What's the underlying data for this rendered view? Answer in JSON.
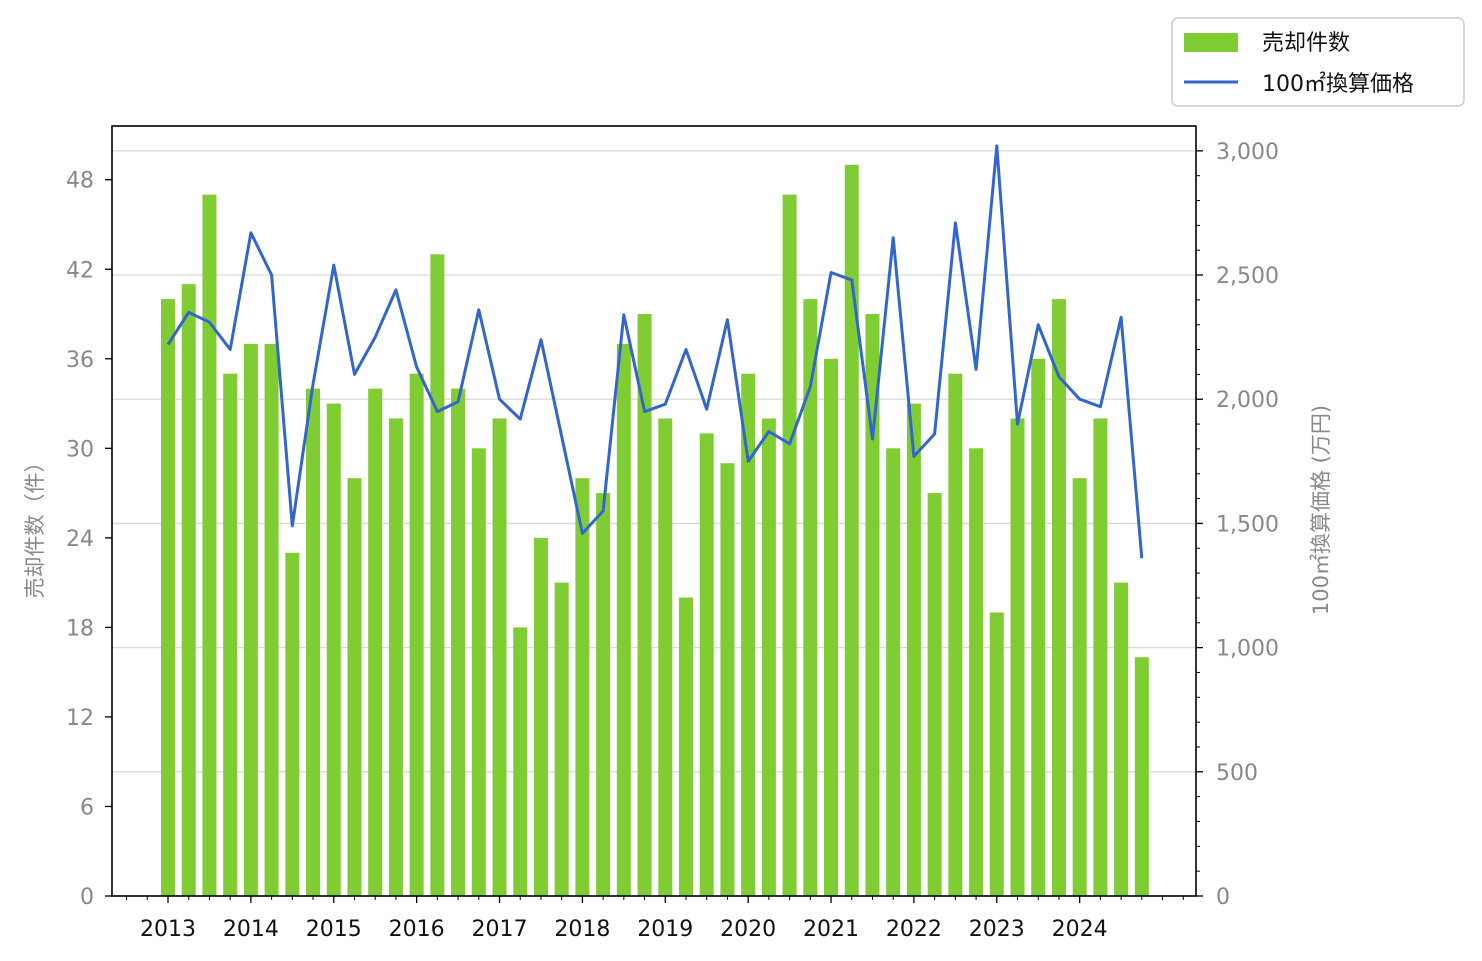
{
  "chart_data": {
    "type": "bar+line",
    "categories": [
      "2013 Q1",
      "2013 Q2",
      "2013 Q3",
      "2013 Q4",
      "2014 Q1",
      "2014 Q2",
      "2014 Q3",
      "2014 Q4",
      "2015 Q1",
      "2015 Q2",
      "2015 Q3",
      "2015 Q4",
      "2016 Q1",
      "2016 Q2",
      "2016 Q3",
      "2016 Q4",
      "2017 Q1",
      "2017 Q2",
      "2017 Q3",
      "2017 Q4",
      "2018 Q1",
      "2018 Q2",
      "2018 Q3",
      "2018 Q4",
      "2019 Q1",
      "2019 Q2",
      "2019 Q3",
      "2019 Q4",
      "2020 Q1",
      "2020 Q2",
      "2020 Q3",
      "2020 Q4",
      "2021 Q1",
      "2021 Q2",
      "2021 Q3",
      "2021 Q4",
      "2022 Q1",
      "2022 Q2",
      "2022 Q3",
      "2022 Q4",
      "2023 Q1",
      "2023 Q2",
      "2023 Q3",
      "2023 Q4",
      "2024 Q1",
      "2024 Q2",
      "2024 Q3",
      "2024 Q4"
    ],
    "series": [
      {
        "name": "売却件数",
        "type": "bar",
        "axis": "left",
        "color": "#7fcc33",
        "values": [
          40,
          41,
          47,
          35,
          37,
          37,
          23,
          34,
          33,
          28,
          34,
          32,
          35,
          43,
          34,
          30,
          32,
          18,
          24,
          21,
          28,
          27,
          37,
          39,
          32,
          20,
          31,
          29,
          35,
          32,
          47,
          40,
          36,
          49,
          39,
          30,
          33,
          27,
          35,
          30,
          19,
          32,
          36,
          40,
          28,
          32,
          21,
          16
        ]
      },
      {
        "name": "100㎡換算価格",
        "type": "line",
        "axis": "right",
        "color": "#3366cc",
        "values": [
          2220,
          2350,
          2310,
          2200,
          2670,
          2500,
          1490,
          2060,
          2540,
          2100,
          2250,
          2440,
          2130,
          1950,
          1990,
          2360,
          2000,
          1920,
          2240,
          1850,
          1460,
          1550,
          2340,
          1950,
          1980,
          2200,
          1960,
          2320,
          1750,
          1870,
          1820,
          2050,
          2510,
          2480,
          1840,
          2650,
          1770,
          1860,
          2710,
          2120,
          3020,
          1900,
          2300,
          2090,
          2000,
          1970,
          2330,
          1360
        ]
      }
    ],
    "x_tick_labels": [
      "2013",
      "2014",
      "2015",
      "2016",
      "2017",
      "2018",
      "2019",
      "2020",
      "2021",
      "2022",
      "2023",
      "2024"
    ],
    "left_axis": {
      "label": "売却件数（件）",
      "ylim": [
        0,
        51.6
      ],
      "ticks": [
        0,
        6,
        12,
        18,
        24,
        30,
        36,
        42,
        48
      ],
      "tick_labels": [
        "0",
        "6",
        "12",
        "18",
        "24",
        "30",
        "36",
        "42",
        "48"
      ]
    },
    "right_axis": {
      "label": "100㎡換算価格 (万円)",
      "ylim": [
        0,
        3100
      ],
      "ticks": [
        0,
        500,
        1000,
        1500,
        2000,
        2500,
        3000
      ],
      "tick_labels": [
        "0",
        "500",
        "1,000",
        "1,500",
        "2,000",
        "2,500",
        "3,000"
      ]
    },
    "grid": "horizontal, right axis",
    "legend": {
      "position": "top-right",
      "entries": [
        "売却件数",
        "100㎡換算価格"
      ]
    }
  }
}
